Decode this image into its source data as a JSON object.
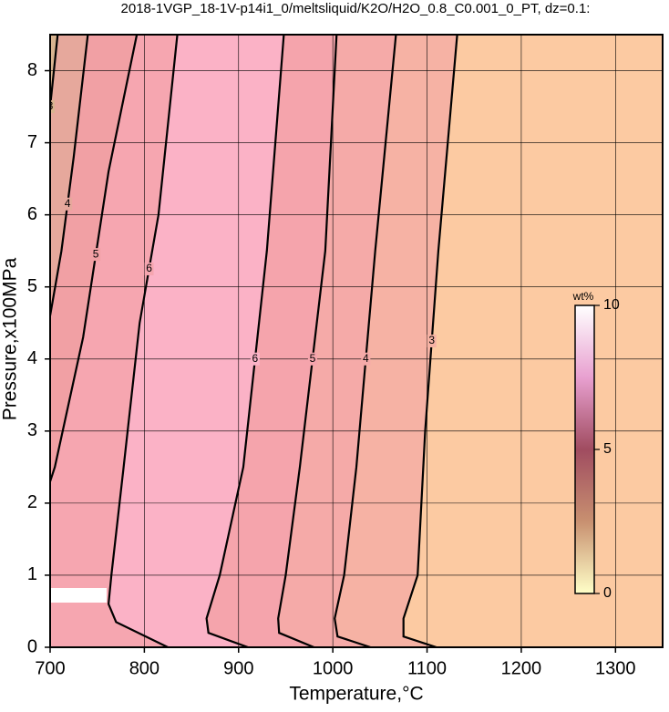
{
  "chart_data": {
    "type": "contour",
    "title": "2018-1VGP_18-1V-p14i1_0/meltsliquid/K2O/H2O_0.8_C0.001_0_PT, dz=0.1:",
    "x_label": "Temperature,°C",
    "y_label": "Pressure,x100MPa",
    "xlim": [
      700,
      1350
    ],
    "ylim": [
      0,
      8.5
    ],
    "xticks": [
      700,
      800,
      900,
      1000,
      1100,
      1200,
      1300
    ],
    "yticks": [
      0,
      1,
      2,
      3,
      4,
      5,
      6,
      7,
      8
    ],
    "grid": true,
    "background": "#fccaa2",
    "contours": [
      {
        "level": 3,
        "color": "#f6b2a4",
        "x": [
          1132,
          1112,
          1098,
          1090,
          1075,
          1075,
          1110
        ],
        "y": [
          8.5,
          5.5,
          3,
          1,
          0.4,
          0.15,
          0
        ]
      },
      {
        "level": 4,
        "color": "#f5aaa8",
        "x": [
          1067,
          1045,
          1025,
          1012,
          1002,
          1005,
          1040
        ],
        "y": [
          8.5,
          5.5,
          2.5,
          1,
          0.4,
          0.15,
          0
        ]
      },
      {
        "level": 5,
        "color": "#f5a4ac",
        "x": [
          1004,
          992,
          965,
          950,
          942,
          943,
          980
        ],
        "y": [
          8.5,
          5.5,
          2.5,
          1,
          0.4,
          0.2,
          0
        ]
      },
      {
        "level": 6,
        "color": "#fbb2c6",
        "x": [
          948,
          930,
          905,
          880,
          866,
          868,
          910
        ],
        "y": [
          8.5,
          5.5,
          2.5,
          1,
          0.4,
          0.2,
          0
        ]
      },
      {
        "level": 6,
        "color": "#f6a6b0",
        "x": [
          835,
          815,
          795,
          778,
          765,
          762,
          770,
          825
        ],
        "y": [
          8.5,
          6,
          4.5,
          2.5,
          1,
          0.6,
          0.35,
          0
        ]
      },
      {
        "level": 5,
        "color": "#f1a0a4",
        "x": [
          792,
          762,
          735,
          705,
          700
        ],
        "y": [
          8.5,
          6.6,
          4.3,
          2.5,
          2.3
        ]
      },
      {
        "level": 4,
        "color": "#e6a89c",
        "x": [
          740,
          725,
          712,
          700
        ],
        "y": [
          8.5,
          6.8,
          5.5,
          4.6
        ]
      },
      {
        "level": 3,
        "color": "#d8b490",
        "x": [
          708,
          700
        ],
        "y": [
          8.5,
          7.5
        ]
      }
    ],
    "colorbar": {
      "label": "wt%",
      "lim": [
        0,
        10
      ],
      "ticks": [
        0,
        5,
        10
      ],
      "colors": [
        "#ffffc8",
        "#c89070",
        "#a04c60",
        "#e8a0d0",
        "#ffffff"
      ]
    }
  }
}
